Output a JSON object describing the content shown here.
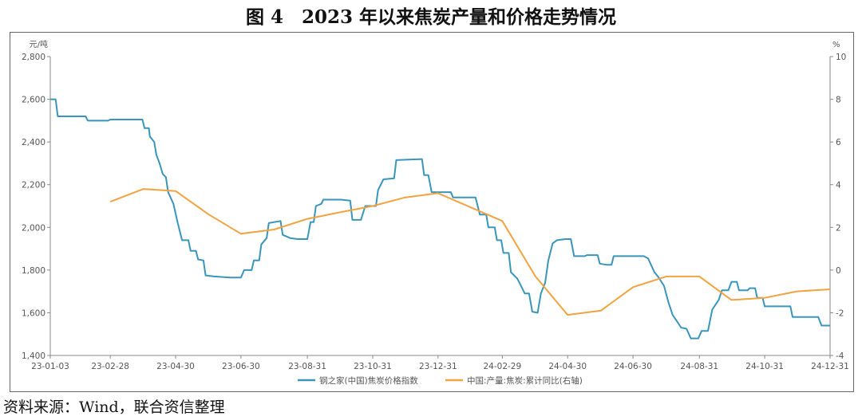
{
  "figure": {
    "title": "图 4　2023 年以来焦炭产量和价格走势情况",
    "source": "资料来源：Wind，联合资信整理"
  },
  "chart_data": {
    "type": "line",
    "left_axis": {
      "unit": "元/吨",
      "ylim": [
        1400,
        2800
      ],
      "ticks": [
        "1,400",
        "1,600",
        "1,800",
        "2,000",
        "2,200",
        "2,400",
        "2,600",
        "2,800"
      ],
      "tick_values": [
        1400,
        1600,
        1800,
        2000,
        2200,
        2400,
        2600,
        2800
      ]
    },
    "right_axis": {
      "unit": "%",
      "ylim": [
        -4,
        10
      ],
      "ticks": [
        "-4",
        "-2",
        "0",
        "2",
        "4",
        "6",
        "8",
        "10"
      ],
      "tick_values": [
        -4,
        -2,
        0,
        2,
        4,
        6,
        8,
        10
      ]
    },
    "x_ticks": [
      "23-01-03",
      "23-02-28",
      "23-04-30",
      "23-06-30",
      "23-08-31",
      "23-10-31",
      "23-12-31",
      "24-02-29",
      "24-04-30",
      "24-06-30",
      "24-08-31",
      "24-10-31",
      "24-12-31"
    ],
    "x_tick_dates": [
      "2023-01-03",
      "2023-02-28",
      "2023-04-30",
      "2023-06-30",
      "2023-08-31",
      "2023-10-31",
      "2023-12-31",
      "2024-02-29",
      "2024-04-30",
      "2024-06-30",
      "2024-08-31",
      "2024-10-31",
      "2024-12-31"
    ],
    "grid": false,
    "legend_position": "bottom",
    "series": [
      {
        "name": "钢之家(中国)焦炭价格指数",
        "axis": "left",
        "color": "#3a95bb",
        "points": [
          [
            "2023-01-03",
            2600
          ],
          [
            "2023-01-08",
            2600
          ],
          [
            "2023-01-10",
            2520
          ],
          [
            "2023-02-05",
            2520
          ],
          [
            "2023-02-07",
            2500
          ],
          [
            "2023-02-26",
            2500
          ],
          [
            "2023-02-28",
            2505
          ],
          [
            "2023-03-30",
            2505
          ],
          [
            "2023-04-01",
            2465
          ],
          [
            "2023-04-05",
            2465
          ],
          [
            "2023-04-06",
            2425
          ],
          [
            "2023-04-10",
            2400
          ],
          [
            "2023-04-12",
            2340
          ],
          [
            "2023-04-15",
            2300
          ],
          [
            "2023-04-18",
            2250
          ],
          [
            "2023-04-21",
            2235
          ],
          [
            "2023-04-23",
            2165
          ],
          [
            "2023-04-28",
            2110
          ],
          [
            "2023-05-02",
            2020
          ],
          [
            "2023-05-06",
            1940
          ],
          [
            "2023-05-12",
            1940
          ],
          [
            "2023-05-14",
            1890
          ],
          [
            "2023-05-19",
            1890
          ],
          [
            "2023-05-21",
            1850
          ],
          [
            "2023-05-26",
            1845
          ],
          [
            "2023-05-28",
            1775
          ],
          [
            "2023-06-05",
            1770
          ],
          [
            "2023-06-20",
            1765
          ],
          [
            "2023-06-30",
            1765
          ],
          [
            "2023-07-03",
            1800
          ],
          [
            "2023-07-10",
            1800
          ],
          [
            "2023-07-12",
            1845
          ],
          [
            "2023-07-17",
            1845
          ],
          [
            "2023-07-19",
            1920
          ],
          [
            "2023-07-24",
            1950
          ],
          [
            "2023-07-26",
            2020
          ],
          [
            "2023-08-06",
            2030
          ],
          [
            "2023-08-08",
            1965
          ],
          [
            "2023-08-15",
            1950
          ],
          [
            "2023-08-22",
            1945
          ],
          [
            "2023-08-31",
            1945
          ],
          [
            "2023-09-03",
            2025
          ],
          [
            "2023-09-06",
            2025
          ],
          [
            "2023-09-08",
            2100
          ],
          [
            "2023-09-13",
            2110
          ],
          [
            "2023-09-15",
            2130
          ],
          [
            "2023-10-01",
            2130
          ],
          [
            "2023-10-10",
            2125
          ],
          [
            "2023-10-12",
            2035
          ],
          [
            "2023-10-20",
            2035
          ],
          [
            "2023-10-24",
            2100
          ],
          [
            "2023-11-03",
            2100
          ],
          [
            "2023-11-05",
            2175
          ],
          [
            "2023-11-10",
            2225
          ],
          [
            "2023-11-20",
            2230
          ],
          [
            "2023-11-22",
            2315
          ],
          [
            "2023-12-16",
            2320
          ],
          [
            "2023-12-18",
            2245
          ],
          [
            "2023-12-22",
            2245
          ],
          [
            "2023-12-25",
            2165
          ],
          [
            "2024-01-12",
            2165
          ],
          [
            "2024-01-14",
            2140
          ],
          [
            "2024-02-04",
            2140
          ],
          [
            "2024-02-08",
            2060
          ],
          [
            "2024-02-14",
            2060
          ],
          [
            "2024-02-16",
            2000
          ],
          [
            "2024-02-22",
            2000
          ],
          [
            "2024-02-24",
            1940
          ],
          [
            "2024-02-28",
            1940
          ],
          [
            "2024-03-01",
            1880
          ],
          [
            "2024-03-06",
            1880
          ],
          [
            "2024-03-08",
            1790
          ],
          [
            "2024-03-14",
            1760
          ],
          [
            "2024-03-17",
            1730
          ],
          [
            "2024-03-21",
            1690
          ],
          [
            "2024-03-25",
            1690
          ],
          [
            "2024-03-28",
            1605
          ],
          [
            "2024-04-02",
            1600
          ],
          [
            "2024-04-05",
            1690
          ],
          [
            "2024-04-09",
            1740
          ],
          [
            "2024-04-12",
            1845
          ],
          [
            "2024-04-16",
            1925
          ],
          [
            "2024-04-20",
            1940
          ],
          [
            "2024-04-28",
            1945
          ],
          [
            "2024-05-03",
            1945
          ],
          [
            "2024-05-06",
            1865
          ],
          [
            "2024-05-16",
            1865
          ],
          [
            "2024-05-18",
            1870
          ],
          [
            "2024-05-28",
            1870
          ],
          [
            "2024-05-30",
            1830
          ],
          [
            "2024-06-05",
            1825
          ],
          [
            "2024-06-10",
            1825
          ],
          [
            "2024-06-12",
            1865
          ],
          [
            "2024-07-10",
            1865
          ],
          [
            "2024-07-14",
            1855
          ],
          [
            "2024-07-20",
            1790
          ],
          [
            "2024-07-24",
            1765
          ],
          [
            "2024-07-29",
            1725
          ],
          [
            "2024-08-02",
            1650
          ],
          [
            "2024-08-06",
            1590
          ],
          [
            "2024-08-10",
            1560
          ],
          [
            "2024-08-14",
            1530
          ],
          [
            "2024-08-19",
            1525
          ],
          [
            "2024-08-23",
            1480
          ],
          [
            "2024-08-30",
            1480
          ],
          [
            "2024-09-02",
            1515
          ],
          [
            "2024-09-08",
            1515
          ],
          [
            "2024-09-10",
            1565
          ],
          [
            "2024-09-12",
            1615
          ],
          [
            "2024-09-18",
            1660
          ],
          [
            "2024-09-21",
            1705
          ],
          [
            "2024-09-27",
            1705
          ],
          [
            "2024-09-30",
            1745
          ],
          [
            "2024-10-05",
            1745
          ],
          [
            "2024-10-07",
            1705
          ],
          [
            "2024-10-15",
            1705
          ],
          [
            "2024-10-17",
            1715
          ],
          [
            "2024-10-22",
            1715
          ],
          [
            "2024-10-24",
            1670
          ],
          [
            "2024-10-29",
            1670
          ],
          [
            "2024-10-31",
            1630
          ],
          [
            "2024-11-24",
            1630
          ],
          [
            "2024-11-26",
            1580
          ],
          [
            "2024-12-20",
            1580
          ],
          [
            "2024-12-23",
            1540
          ],
          [
            "2024-12-31",
            1540
          ]
        ]
      },
      {
        "name": "中国:产量:焦炭:累计同比(右轴)",
        "axis": "right",
        "color": "#f0a340",
        "points": [
          [
            "2023-02-28",
            3.2
          ],
          [
            "2023-03-31",
            3.8
          ],
          [
            "2023-04-30",
            3.7
          ],
          [
            "2023-05-31",
            2.6
          ],
          [
            "2023-06-30",
            1.7
          ],
          [
            "2023-07-31",
            1.9
          ],
          [
            "2023-08-31",
            2.4
          ],
          [
            "2023-09-30",
            2.7
          ],
          [
            "2023-10-31",
            3.0
          ],
          [
            "2023-11-30",
            3.4
          ],
          [
            "2023-12-31",
            3.6
          ],
          [
            "2024-02-29",
            2.3
          ],
          [
            "2024-03-31",
            -0.3
          ],
          [
            "2024-04-30",
            -2.1
          ],
          [
            "2024-05-31",
            -1.9
          ],
          [
            "2024-06-30",
            -0.8
          ],
          [
            "2024-07-31",
            -0.3
          ],
          [
            "2024-08-31",
            -0.3
          ],
          [
            "2024-09-30",
            -1.4
          ],
          [
            "2024-10-31",
            -1.3
          ],
          [
            "2024-11-30",
            -1.0
          ],
          [
            "2024-12-31",
            -0.9
          ]
        ]
      }
    ]
  }
}
